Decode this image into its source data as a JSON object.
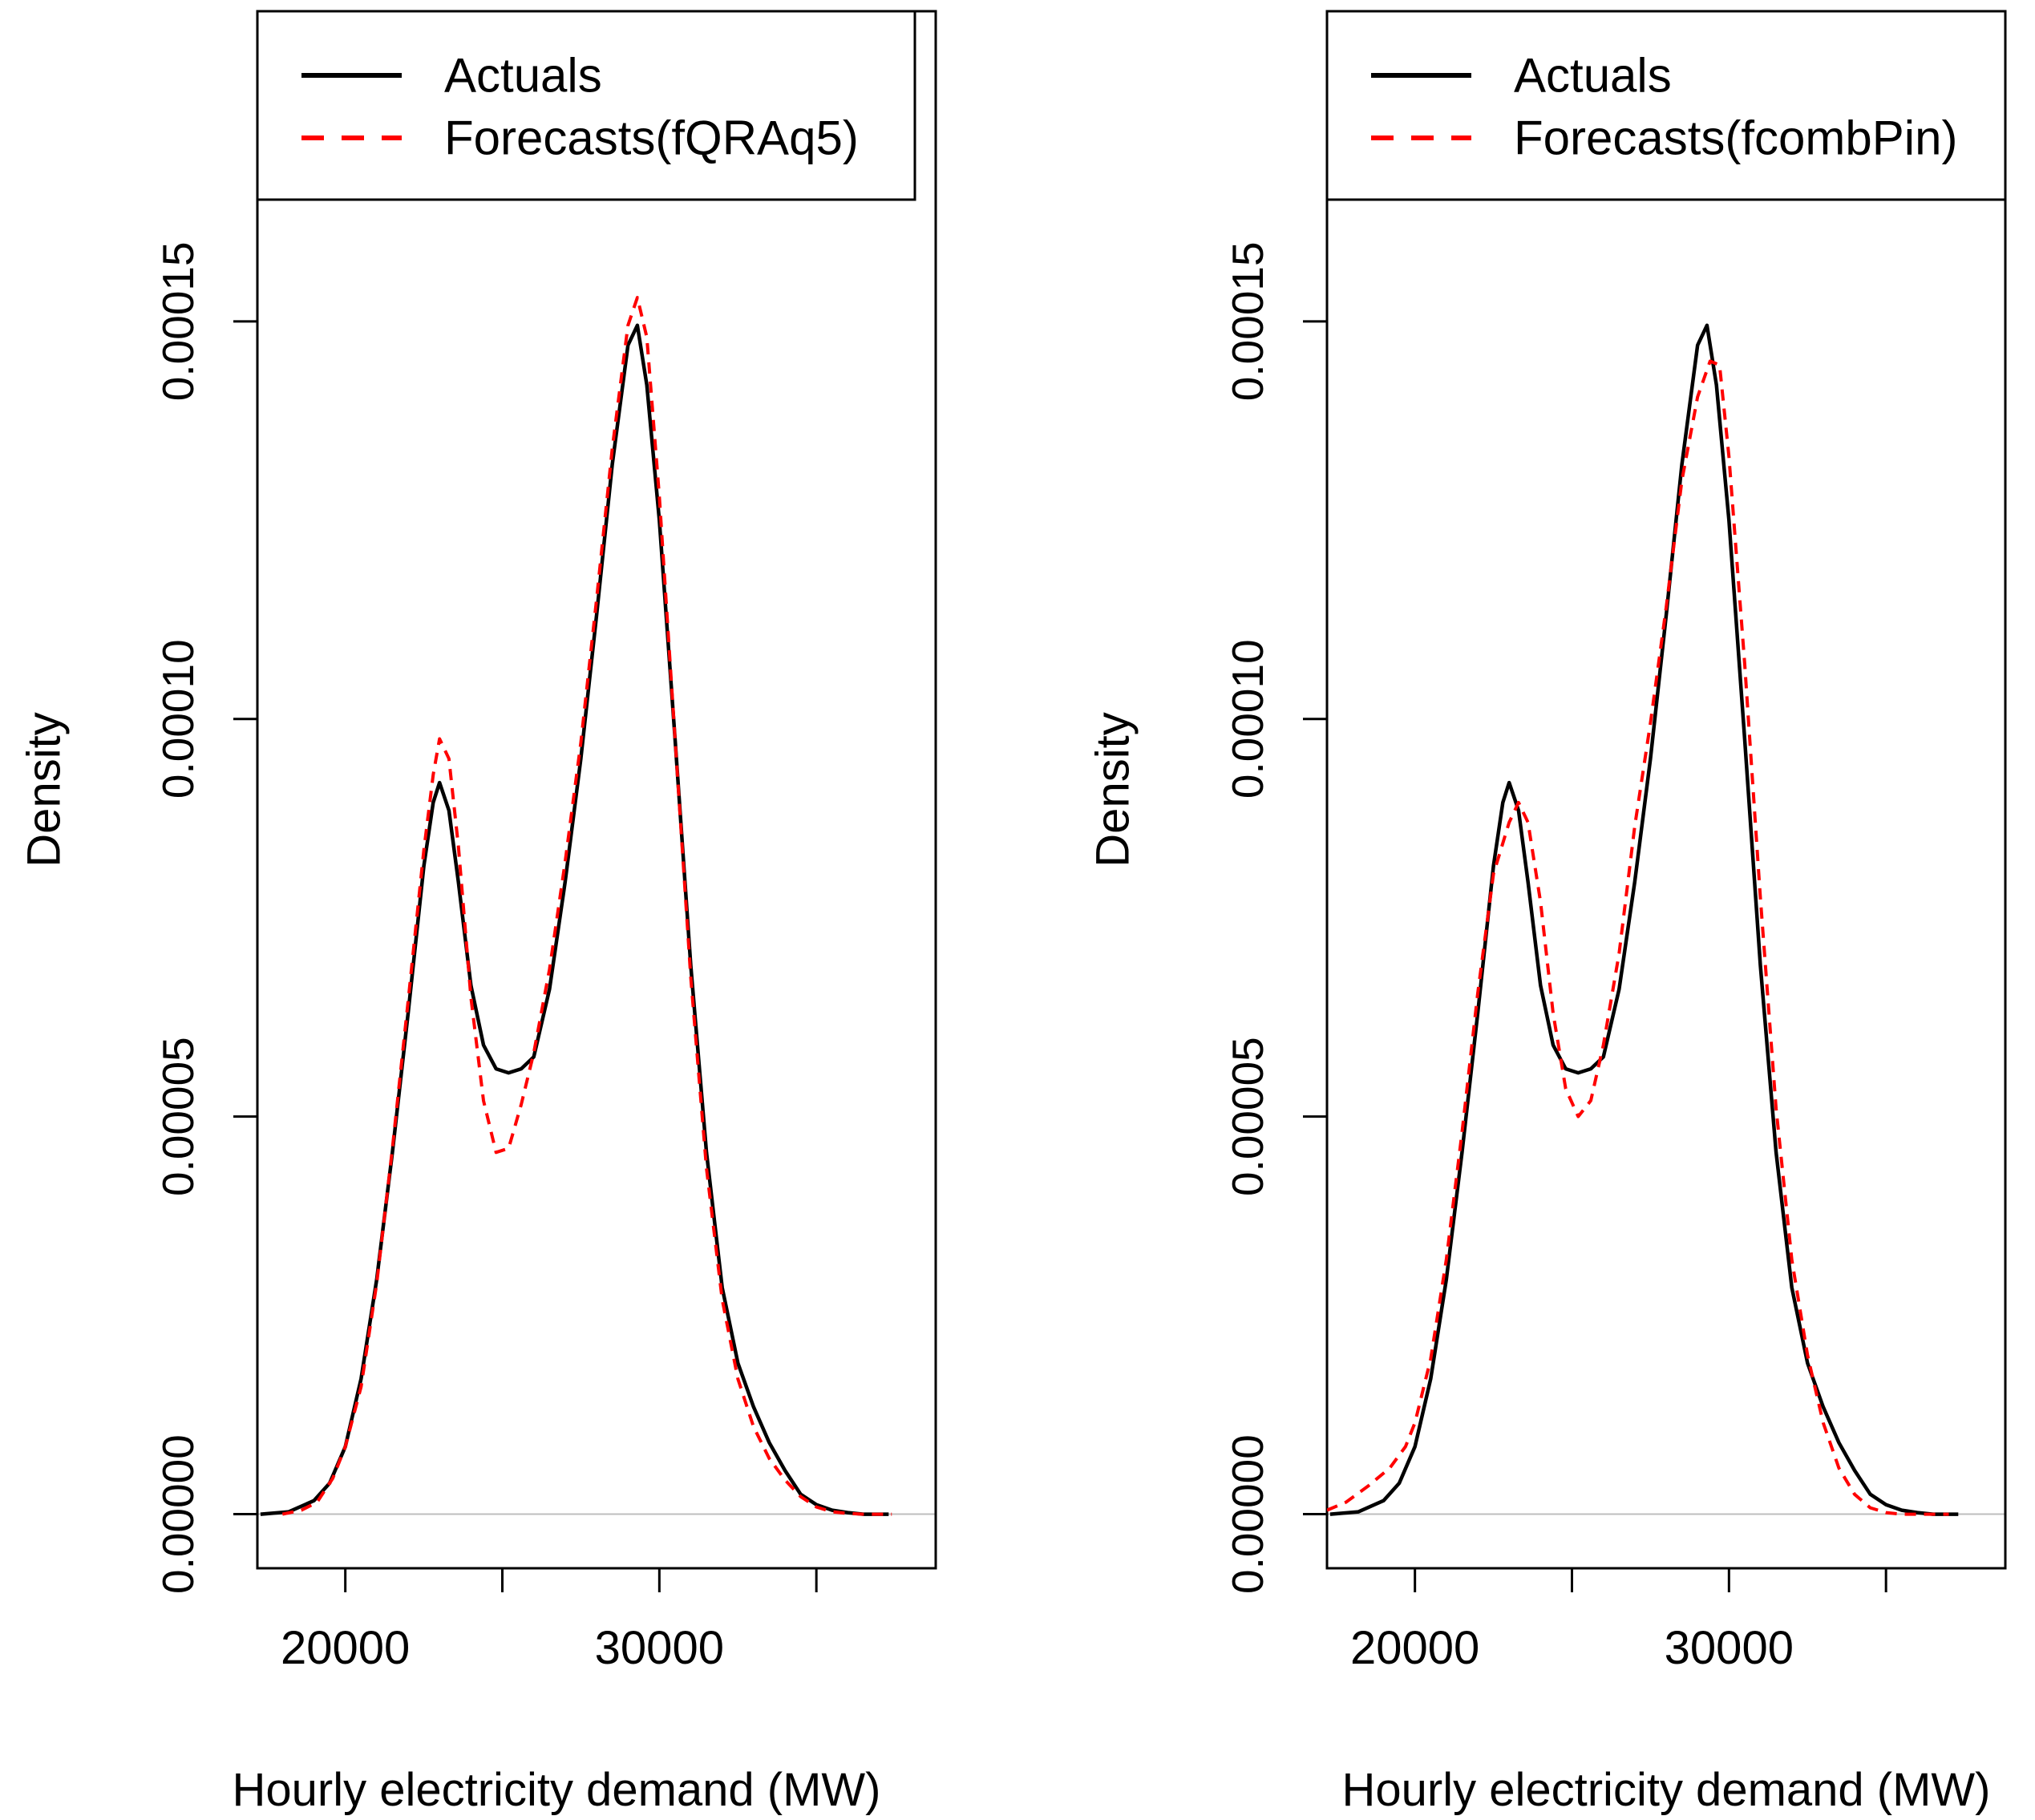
{
  "colors": {
    "actual": "#000000",
    "forecast": "#ff0000",
    "zero_line": "#bebebe",
    "frame": "#000000"
  },
  "chart_data": [
    {
      "type": "line",
      "xlabel": "Hourly electricity demand  (MW)",
      "ylabel": "Density",
      "xlim": [
        17200,
        38800
      ],
      "ylim": [
        -6.8e-06,
        0.000189
      ],
      "xticks": [
        20000,
        25000,
        30000,
        35000
      ],
      "xtick_labels": [
        "20000",
        "",
        "30000",
        ""
      ],
      "yticks": [
        0,
        5e-05,
        0.0001,
        0.00015
      ],
      "ytick_labels": [
        "0.00000",
        "0.00005",
        "0.00010",
        "0.00015"
      ],
      "legend": {
        "position": "top-left",
        "entries": [
          "Actuals",
          "Forecasts(fQRAq5)"
        ]
      },
      "series": [
        {
          "name": "Actuals",
          "style": "solid",
          "x": [
            17300,
            18200,
            19000,
            19500,
            20000,
            20500,
            21000,
            21500,
            22000,
            22500,
            22800,
            23000,
            23300,
            23600,
            24000,
            24400,
            24800,
            25200,
            25600,
            26000,
            26500,
            27000,
            27500,
            28000,
            28500,
            29000,
            29300,
            29600,
            30000,
            30500,
            31000,
            31500,
            32000,
            32500,
            33000,
            33500,
            34000,
            34500,
            35000,
            35500,
            36000,
            36500,
            37000,
            37300
          ],
          "y": [
            0,
            3e-07,
            1.7e-06,
            3.9e-06,
            8.5e-06,
            1.7e-05,
            2.95e-05,
            4.55e-05,
            6.3e-05,
            8.15e-05,
            8.95e-05,
            9.2e-05,
            8.85e-05,
            7.95e-05,
            6.65e-05,
            5.9e-05,
            5.6e-05,
            5.55e-05,
            5.6e-05,
            5.75e-05,
            6.6e-05,
            7.95e-05,
            9.5e-05,
            0.000113,
            0.000132,
            0.000147,
            0.0001495,
            0.000142,
            0.000125,
            9.75e-05,
            6.9e-05,
            4.55e-05,
            2.85e-05,
            1.9e-05,
            1.35e-05,
            9e-06,
            5.5e-06,
            2.5e-06,
            1.2e-06,
            5e-07,
            2e-07,
            0,
            0,
            0
          ]
        },
        {
          "name": "Forecasts(fQRAq5)",
          "style": "dashed",
          "x": [
            18000,
            18600,
            19100,
            19600,
            20000,
            20500,
            21000,
            21500,
            22000,
            22500,
            22800,
            23000,
            23300,
            23600,
            24000,
            24400,
            24800,
            25200,
            25600,
            26000,
            26500,
            27000,
            27500,
            28000,
            28500,
            29000,
            29300,
            29600,
            30000,
            30500,
            31000,
            31500,
            32000,
            32500,
            33000,
            33500,
            34000,
            34500,
            35000,
            35500,
            36000,
            36500,
            37000,
            37400
          ],
          "y": [
            0,
            5e-07,
            1.5e-06,
            4.5e-06,
            8.5e-06,
            1.6e-05,
            2.9e-05,
            4.6e-05,
            6.45e-05,
            8.35e-05,
            9.3e-05,
            9.75e-05,
            9.5e-05,
            8.4e-05,
            6.5e-05,
            5.2e-05,
            4.55e-05,
            4.6e-05,
            5.15e-05,
            5.8e-05,
            6.85e-05,
            8.2e-05,
            9.7e-05,
            0.000115,
            0.000134,
            0.0001495,
            0.000153,
            0.000148,
            0.000128,
            9.75e-05,
            6.75e-05,
            4.35e-05,
            2.7e-05,
            1.7e-05,
            1.1e-05,
            7e-06,
            4.3e-06,
            2.2e-06,
            9e-07,
            3e-07,
            1e-07,
            0,
            0,
            0
          ]
        }
      ]
    },
    {
      "type": "line",
      "xlabel": "Hourly electricity demand (MW)",
      "ylabel": "Density",
      "xlim": [
        17200,
        38800
      ],
      "ylim": [
        -6.8e-06,
        0.000189
      ],
      "xticks": [
        20000,
        25000,
        30000,
        35000
      ],
      "xtick_labels": [
        "20000",
        "",
        "30000",
        ""
      ],
      "yticks": [
        0,
        5e-05,
        0.0001,
        0.00015
      ],
      "ytick_labels": [
        "0.00000",
        "0.00005",
        "0.00010",
        "0.00015"
      ],
      "legend": {
        "position": "top-left",
        "entries": [
          "Actuals",
          "Forecasts(fcombPin)"
        ]
      },
      "series": [
        {
          "name": "Actuals",
          "style": "solid",
          "x": [
            17300,
            18200,
            19000,
            19500,
            20000,
            20500,
            21000,
            21500,
            22000,
            22500,
            22800,
            23000,
            23300,
            23600,
            24000,
            24400,
            24800,
            25200,
            25600,
            26000,
            26500,
            27000,
            27500,
            28000,
            28500,
            29000,
            29300,
            29600,
            30000,
            30500,
            31000,
            31500,
            32000,
            32500,
            33000,
            33500,
            34000,
            34500,
            35000,
            35500,
            36000,
            36500,
            37000,
            37300
          ],
          "y": [
            0,
            3e-07,
            1.7e-06,
            3.9e-06,
            8.5e-06,
            1.7e-05,
            2.95e-05,
            4.55e-05,
            6.3e-05,
            8.15e-05,
            8.95e-05,
            9.2e-05,
            8.85e-05,
            7.95e-05,
            6.65e-05,
            5.9e-05,
            5.6e-05,
            5.55e-05,
            5.6e-05,
            5.75e-05,
            6.6e-05,
            7.95e-05,
            9.5e-05,
            0.000113,
            0.000132,
            0.000147,
            0.0001495,
            0.000142,
            0.000125,
            9.75e-05,
            6.9e-05,
            4.55e-05,
            2.85e-05,
            1.9e-05,
            1.35e-05,
            9e-06,
            5.5e-06,
            2.5e-06,
            1.2e-06,
            5e-07,
            2e-07,
            0,
            0,
            0
          ]
        },
        {
          "name": "Forecasts(fcombPin)",
          "style": "dashed",
          "x": [
            17200,
            17800,
            18500,
            19200,
            19700,
            20000,
            20500,
            21000,
            21500,
            22000,
            22500,
            23000,
            23300,
            23600,
            24000,
            24400,
            24800,
            25200,
            25600,
            26000,
            26500,
            27000,
            27500,
            28000,
            28500,
            29000,
            29400,
            29700,
            30000,
            30500,
            31000,
            31500,
            32000,
            32500,
            33000,
            33500,
            34000,
            34500,
            35000,
            35500,
            36000,
            36500,
            37000
          ],
          "y": [
            5e-07,
            1.5e-06,
            3.5e-06,
            5.8e-06,
            8.5e-06,
            1.15e-05,
            1.95e-05,
            3.2e-05,
            4.8e-05,
            6.55e-05,
            8.05e-05,
            8.7e-05,
            8.95e-05,
            8.7e-05,
            7.7e-05,
            6.3e-05,
            5.35e-05,
            5e-05,
            5.2e-05,
            5.9e-05,
            7.05e-05,
            8.65e-05,
            9.95e-05,
            0.000114,
            0.00013,
            0.0001405,
            0.000145,
            0.0001445,
            0.000133,
            0.000107,
            7.75e-05,
            5.1e-05,
            3.2e-05,
            2e-05,
            1.15e-05,
            5.8e-06,
            2.5e-06,
            8e-07,
            2e-07,
            0,
            0,
            0,
            0
          ]
        }
      ]
    }
  ]
}
